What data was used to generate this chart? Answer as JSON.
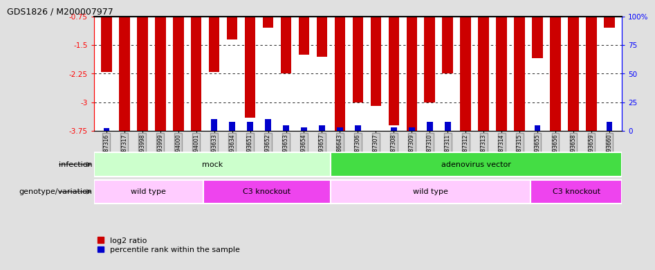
{
  "title": "GDS1826 / M200007977",
  "samples": [
    "GSM87316",
    "GSM87317",
    "GSM93998",
    "GSM93999",
    "GSM94000",
    "GSM94001",
    "GSM93633",
    "GSM93634",
    "GSM93651",
    "GSM93652",
    "GSM93653",
    "GSM93654",
    "GSM93657",
    "GSM86643",
    "GSM87306",
    "GSM87307",
    "GSM87308",
    "GSM87309",
    "GSM87310",
    "GSM87311",
    "GSM87312",
    "GSM87313",
    "GSM87314",
    "GSM87315",
    "GSM93655",
    "GSM93656",
    "GSM93658",
    "GSM93659",
    "GSM93660"
  ],
  "log2_ratio": [
    -2.2,
    -3.75,
    -3.75,
    -3.75,
    -3.75,
    -3.75,
    -2.2,
    -1.35,
    -3.4,
    -1.05,
    -2.25,
    -1.75,
    -1.8,
    -3.75,
    -3.0,
    -3.1,
    -3.6,
    -3.75,
    -3.0,
    -2.25,
    -3.75,
    -3.75,
    -3.75,
    -3.75,
    -1.85,
    -3.75,
    -3.75,
    -3.75,
    -1.05
  ],
  "percentile": [
    2,
    0,
    0,
    0,
    0,
    0,
    10,
    8,
    8,
    10,
    5,
    3,
    5,
    3,
    5,
    0,
    3,
    3,
    8,
    8,
    0,
    0,
    0,
    0,
    5,
    0,
    0,
    0,
    8
  ],
  "bar_color": "#cc0000",
  "pct_color": "#0000cc",
  "ymin": -3.75,
  "ymax": -0.75,
  "yticks": [
    -3.75,
    -3.0,
    -2.25,
    -1.5,
    -0.75
  ],
  "ytick_labels": [
    "-3.75",
    "-3",
    "-2.25",
    "-1.5",
    "-0.75"
  ],
  "right_yticks_pct": [
    0,
    25,
    50,
    75,
    100
  ],
  "right_ytick_labels": [
    "0",
    "25",
    "50",
    "75",
    "100%"
  ],
  "grid_lines": [
    -1.5,
    -2.25,
    -3.0
  ],
  "infection_groups": [
    {
      "label": "mock",
      "start": 0,
      "end": 12,
      "color": "#ccffcc"
    },
    {
      "label": "adenovirus vector",
      "start": 13,
      "end": 28,
      "color": "#44dd44"
    }
  ],
  "genotype_groups": [
    {
      "label": "wild type",
      "start": 0,
      "end": 5,
      "color": "#ffccff"
    },
    {
      "label": "C3 knockout",
      "start": 6,
      "end": 12,
      "color": "#ee44ee"
    },
    {
      "label": "wild type",
      "start": 13,
      "end": 23,
      "color": "#ffccff"
    },
    {
      "label": "C3 knockout",
      "start": 24,
      "end": 28,
      "color": "#ee44ee"
    }
  ],
  "infection_label": "infection",
  "genotype_label": "genotype/variation",
  "legend_red": "log2 ratio",
  "legend_blue": "percentile rank within the sample",
  "bg_color": "#e0e0e0",
  "plot_bg": "#ffffff"
}
